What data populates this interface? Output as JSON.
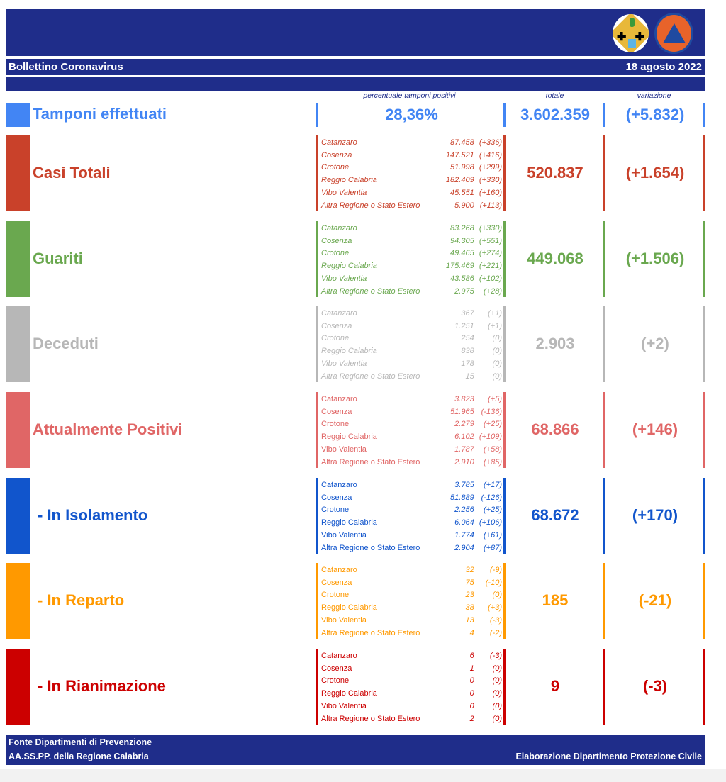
{
  "header": {
    "title": "Bollettino Coronavirus",
    "date": "18 agosto 2022",
    "logos": [
      "regione-calabria-coat-of-arms",
      "protezione-civile-regione-calabria"
    ]
  },
  "columns": {
    "percent_label": "percentuale tamponi positivi",
    "total_label": "totale",
    "change_label": "variazione"
  },
  "tamponi": {
    "label": "Tamponi effettuati",
    "percent_positive": "28,36%",
    "total": "3.602.359",
    "change": "(+5.832)",
    "color": "#4285f4"
  },
  "sections": [
    {
      "label": "Casi Totali",
      "color": "#c9412a",
      "total": "520.837",
      "change": "(+1.654)",
      "rows": [
        {
          "name": "Catanzaro",
          "value": "87.458",
          "delta": "(+336)"
        },
        {
          "name": "Cosenza",
          "value": "147.521",
          "delta": "(+416)"
        },
        {
          "name": "Crotone",
          "value": "51.998",
          "delta": "(+299)"
        },
        {
          "name": "Reggio Calabria",
          "value": "182.409",
          "delta": "(+330)"
        },
        {
          "name": "Vibo Valentia",
          "value": "45.551",
          "delta": "(+160)"
        },
        {
          "name": "Altra Regione o Stato Estero",
          "value": "5.900",
          "delta": "(+113)"
        }
      ]
    },
    {
      "label": "Guariti",
      "color": "#6aa84f",
      "total": "449.068",
      "change": "(+1.506)",
      "rows": [
        {
          "name": "Catanzaro",
          "value": "83.268",
          "delta": "(+330)"
        },
        {
          "name": "Cosenza",
          "value": "94.305",
          "delta": "(+551)"
        },
        {
          "name": "Crotone",
          "value": "49.465",
          "delta": "(+274)"
        },
        {
          "name": "Reggio Calabria",
          "value": "175.469",
          "delta": "(+221)"
        },
        {
          "name": "Vibo Valentia",
          "value": "43.586",
          "delta": "(+102)"
        },
        {
          "name": "Altra Regione o Stato Estero",
          "value": "2.975",
          "delta": "(+28)"
        }
      ]
    },
    {
      "label": "Deceduti",
      "color": "#b7b7b7",
      "total": "2.903",
      "change": "(+2)",
      "rows": [
        {
          "name": "Catanzaro",
          "value": "367",
          "delta": "(+1)"
        },
        {
          "name": "Cosenza",
          "value": "1.251",
          "delta": "(+1)"
        },
        {
          "name": "Crotone",
          "value": "254",
          "delta": "(0)"
        },
        {
          "name": "Reggio Calabria",
          "value": "838",
          "delta": "(0)"
        },
        {
          "name": "Vibo Valentia",
          "value": "178",
          "delta": "(0)"
        },
        {
          "name": "Altra Regione o Stato Estero",
          "value": "15",
          "delta": "(0)"
        }
      ]
    },
    {
      "label": "Attualmente Positivi",
      "color": "#e06666",
      "total": "68.866",
      "change": "(+146)",
      "rows": [
        {
          "name": "Catanzaro",
          "value": "3.823",
          "delta": "(+5)"
        },
        {
          "name": "Cosenza",
          "value": "51.965",
          "delta": "(-136)"
        },
        {
          "name": "Crotone",
          "value": "2.279",
          "delta": "(+25)"
        },
        {
          "name": "Reggio Calabria",
          "value": "6.102",
          "delta": "(+109)"
        },
        {
          "name": "Vibo Valentia",
          "value": "1.787",
          "delta": "(+58)"
        },
        {
          "name": "Altra Regione o Stato Estero",
          "value": "2.910",
          "delta": "(+85)"
        }
      ]
    },
    {
      "label": "- In Isolamento",
      "color": "#1155cc",
      "total": "68.672",
      "change": "(+170)",
      "rows": [
        {
          "name": "Catanzaro",
          "value": "3.785",
          "delta": "(+17)"
        },
        {
          "name": "Cosenza",
          "value": "51.889",
          "delta": "(-126)"
        },
        {
          "name": "Crotone",
          "value": "2.256",
          "delta": "(+25)"
        },
        {
          "name": "Reggio Calabria",
          "value": "6.064",
          "delta": "(+106)"
        },
        {
          "name": "Vibo Valentia",
          "value": "1.774",
          "delta": "(+61)"
        },
        {
          "name": "Altra Regione o Stato Estero",
          "value": "2.904",
          "delta": "(+87)"
        }
      ]
    },
    {
      "label": "- In Reparto",
      "color": "#ff9900",
      "total": "185",
      "change": "(-21)",
      "rows": [
        {
          "name": "Catanzaro",
          "value": "32",
          "delta": "(-9)"
        },
        {
          "name": "Cosenza",
          "value": "75",
          "delta": "(-10)"
        },
        {
          "name": "Crotone",
          "value": "23",
          "delta": "(0)"
        },
        {
          "name": "Reggio Calabria",
          "value": "38",
          "delta": "(+3)"
        },
        {
          "name": "Vibo Valentia",
          "value": "13",
          "delta": "(-3)"
        },
        {
          "name": "Altra Regione o Stato Estero",
          "value": "4",
          "delta": "(-2)"
        }
      ]
    },
    {
      "label": "- In Rianimazione",
      "color": "#cc0000",
      "total": "9",
      "change": "(-3)",
      "rows": [
        {
          "name": "Catanzaro",
          "value": "6",
          "delta": "(-3)"
        },
        {
          "name": "Cosenza",
          "value": "1",
          "delta": "(0)"
        },
        {
          "name": "Crotone",
          "value": "0",
          "delta": "(0)"
        },
        {
          "name": "Reggio Calabria",
          "value": "0",
          "delta": "(0)"
        },
        {
          "name": "Vibo Valentia",
          "value": "0",
          "delta": "(0)"
        },
        {
          "name": "Altra Regione o Stato Estero",
          "value": "2",
          "delta": "(0)"
        }
      ]
    }
  ],
  "footer": {
    "line1": "Fonte Dipartimenti di Prevenzione",
    "line2_left": "AA.SS.PP.  della Regione Calabria",
    "line2_right": "Elaborazione Dipartimento Protezione Civile"
  }
}
